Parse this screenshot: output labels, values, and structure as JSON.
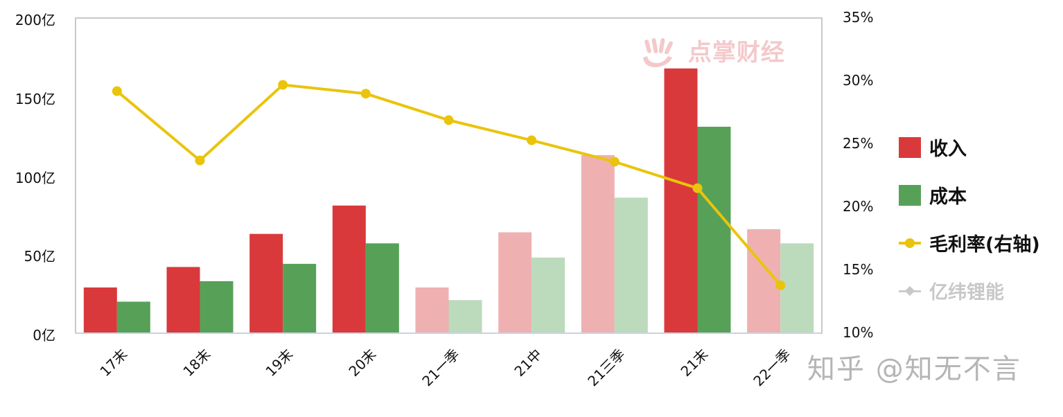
{
  "chart_data": {
    "type": "bar",
    "title": "",
    "categories": [
      "17末",
      "18末",
      "19末",
      "20末",
      "21一季",
      "21中",
      "21三季",
      "21末",
      "22一季"
    ],
    "series": [
      {
        "name": "收入",
        "type": "bar",
        "axis": "left",
        "color": "#d9393b",
        "faded_color": "#efb0b1",
        "values": [
          29,
          42,
          63,
          81,
          29,
          64,
          113,
          168,
          66
        ]
      },
      {
        "name": "成本",
        "type": "bar",
        "axis": "left",
        "color": "#56a157",
        "faded_color": "#bcdabc",
        "values": [
          20,
          33,
          44,
          57,
          21,
          48,
          86,
          131,
          57
        ]
      },
      {
        "name": "毛利率(右轴)",
        "type": "line",
        "axis": "right",
        "color": "#eac40c",
        "unit": "%",
        "values": [
          29.2,
          23.7,
          29.7,
          29.0,
          26.9,
          25.3,
          23.6,
          21.5,
          13.8
        ]
      }
    ],
    "faded_categories": [
      "21一季",
      "21中",
      "21三季",
      "22一季"
    ],
    "left_axis": {
      "ticks": [
        "0亿",
        "50亿",
        "100亿",
        "150亿",
        "200亿"
      ],
      "range": [
        0,
        200
      ],
      "unit": "亿"
    },
    "right_axis": {
      "ticks": [
        "10%",
        "15%",
        "20%",
        "25%",
        "30%",
        "35%"
      ],
      "range": [
        10,
        35
      ],
      "unit": "%"
    },
    "xlabel": "",
    "ylabel": "",
    "grid": false,
    "legend_position": "right",
    "legend": [
      {
        "label": "收入",
        "kind": "bar",
        "color": "#d9393b"
      },
      {
        "label": "成本",
        "kind": "bar",
        "color": "#56a157"
      },
      {
        "label": "毛利率(右轴)",
        "kind": "line-dot",
        "color": "#eac40c"
      },
      {
        "label": "亿纬锂能",
        "kind": "line-diamond",
        "color": "#c8c8c8"
      }
    ]
  },
  "watermarks": {
    "top": "点掌财经",
    "bottom": "知乎 @知无不言"
  }
}
